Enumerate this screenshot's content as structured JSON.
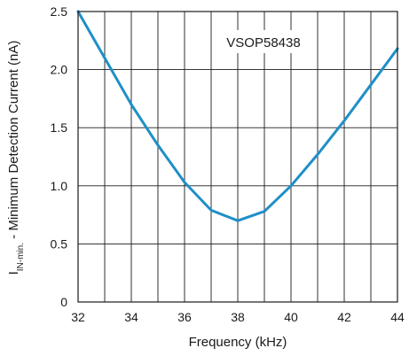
{
  "chart_data": {
    "type": "line",
    "xlabel": "Frequency (kHz)",
    "ylabel": {
      "symbol": "I",
      "subscript": "IN-min.",
      "text": " - Minimum Detection Current (nA)"
    },
    "annotation": "VSOP58438",
    "xlim": [
      32,
      44
    ],
    "ylim": [
      0,
      2.5
    ],
    "x_ticks": [
      32,
      34,
      36,
      38,
      40,
      42,
      44
    ],
    "x_tick_labels": [
      "32",
      "34",
      "36",
      "38",
      "40",
      "42",
      "44"
    ],
    "y_ticks": [
      0,
      0.5,
      1.0,
      1.5,
      2.0,
      2.5
    ],
    "y_tick_labels": [
      "0",
      "0.5",
      "1.0",
      "1.5",
      "2.0",
      "2.5"
    ],
    "x_grid": [
      33,
      34,
      35,
      36,
      37,
      38,
      39,
      40,
      41,
      42,
      43
    ],
    "grid": true,
    "series": [
      {
        "x": [
          32,
          33,
          34,
          35,
          36,
          37,
          38,
          39,
          40,
          41,
          42,
          43,
          44
        ],
        "values": [
          2.5,
          2.1,
          1.7,
          1.35,
          1.03,
          0.79,
          0.7,
          0.78,
          1.0,
          1.27,
          1.56,
          1.87,
          2.18
        ],
        "color": "#1f8fc7"
      }
    ]
  }
}
